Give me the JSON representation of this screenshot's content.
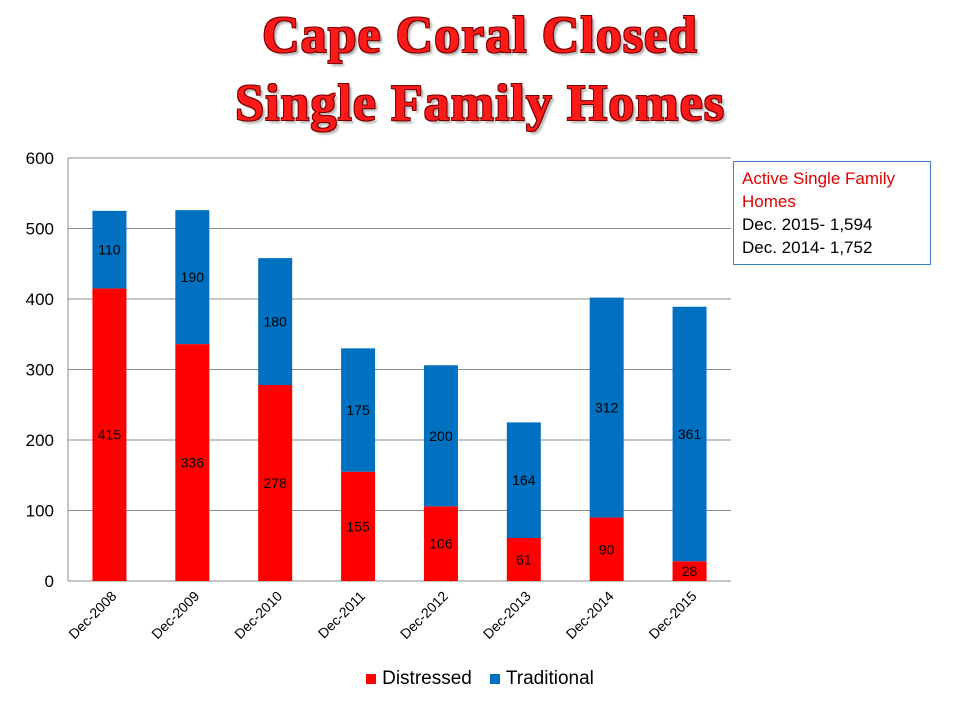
{
  "title_line1": "Cape Coral Closed",
  "title_line2": "Single Family Homes",
  "infobox": {
    "heading": "Active Single Family Homes",
    "line1": "Dec. 2015- 1,594",
    "line2": "Dec. 2014- 1,752"
  },
  "chart_data": {
    "type": "bar",
    "stacked": true,
    "categories": [
      "Dec-2008",
      "Dec-2009",
      "Dec-2010",
      "Dec-2011",
      "Dec-2012",
      "Dec-2013",
      "Dec-2014",
      "Dec-2015"
    ],
    "series": [
      {
        "name": "Distressed",
        "color": "#ff0000",
        "values": [
          415,
          336,
          278,
          155,
          106,
          61,
          90,
          28
        ]
      },
      {
        "name": "Traditional",
        "color": "#0070c0",
        "values": [
          110,
          190,
          180,
          175,
          200,
          164,
          312,
          361
        ]
      }
    ],
    "ylim": [
      0,
      600
    ],
    "yticks": [
      0,
      100,
      200,
      300,
      400,
      500,
      600
    ],
    "grid": true,
    "legend_position": "bottom"
  },
  "colors": {
    "distressed": "#ff0000",
    "traditional": "#0070c0",
    "title": "#ff1a1a"
  }
}
